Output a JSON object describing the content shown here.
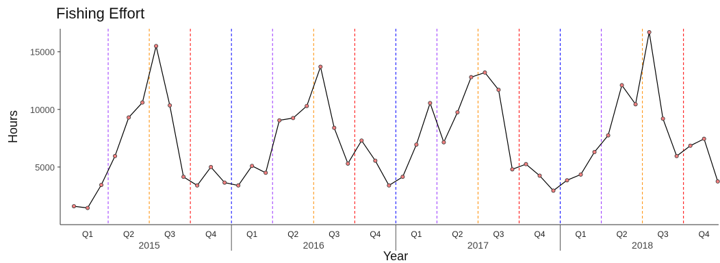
{
  "chart_data": {
    "type": "line",
    "title": "Fishing Effort",
    "xlabel": "Year",
    "ylabel": "Hours",
    "ylim": [
      0,
      17000
    ],
    "yticks": [
      5000,
      10000,
      15000
    ],
    "years": [
      "2015",
      "2016",
      "2017",
      "2018"
    ],
    "quarters": [
      "Q1",
      "Q2",
      "Q3",
      "Q4"
    ],
    "points_per_year": 12,
    "values": [
      1600,
      1450,
      3450,
      5950,
      9300,
      10600,
      15500,
      10350,
      4150,
      3400,
      5000,
      3650,
      3400,
      5100,
      4500,
      9050,
      9250,
      10300,
      13700,
      8400,
      5300,
      7300,
      5550,
      3400,
      4150,
      6950,
      10550,
      7150,
      9750,
      12800,
      13200,
      11700,
      4800,
      5250,
      4250,
      2950,
      3850,
      4350,
      6300,
      7750,
      12100,
      10450,
      16700,
      9200,
      5950,
      6850,
      7450,
      3750
    ],
    "line_color": "#000000",
    "point_fill": "#f08080",
    "point_stroke": "#333333",
    "quarter_line_colors": [
      "#9933ff",
      "#ff8c00",
      "#ff0000",
      "#0000ff"
    ],
    "grid": false
  }
}
